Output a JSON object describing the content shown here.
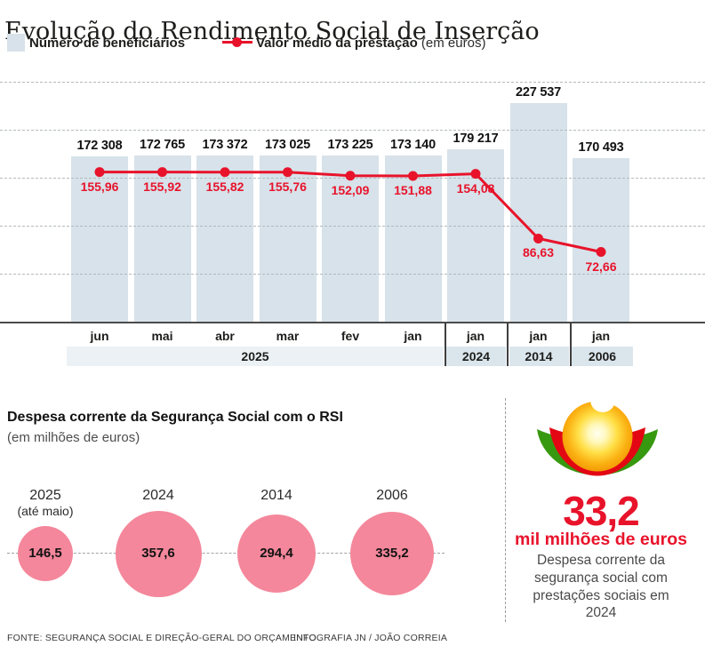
{
  "title": "Evolução do Rendimento Social de Inserção",
  "legend": {
    "beneficiaries_label": "Número de beneficiários",
    "value_label": "Valor médio da prestação",
    "value_unit": "(em euros)"
  },
  "colors": {
    "accent_red": "#e8132b",
    "bar_fill": "#d7e2ea",
    "band_light": "#ebf1f5",
    "band_dark": "#dbe5ec",
    "bubble_pink": "#f4879b",
    "logo_green": "#37990f",
    "logo_red": "#e30613",
    "logo_orange": "#f09200",
    "axis_gray": "#4a4a4a"
  },
  "chart_data": [
    {
      "type": "bar",
      "subtype": "bar+line dual scale",
      "categories": [
        "jun",
        "mai",
        "abr",
        "mar",
        "fev",
        "jan",
        "jan",
        "jan",
        "jan"
      ],
      "year_groups": [
        {
          "label": "2025",
          "span": 6
        },
        {
          "label": "2024",
          "span": 1
        },
        {
          "label": "2014",
          "span": 1
        },
        {
          "label": "2006",
          "span": 1
        }
      ],
      "series": [
        {
          "name": "Número de beneficiários",
          "type": "bar",
          "values": [
            172308,
            172765,
            173372,
            173025,
            173225,
            173140,
            179217,
            227537,
            170493
          ],
          "labels": [
            "172 308",
            "172 765",
            "173 372",
            "173 025",
            "173 225",
            "173 140",
            "179 217",
            "227 537",
            "170 493"
          ]
        },
        {
          "name": "Valor médio da prestação (em euros)",
          "type": "line",
          "values": [
            155.96,
            155.92,
            155.82,
            155.76,
            152.09,
            151.88,
            154.08,
            86.63,
            72.66
          ],
          "labels": [
            "155,96",
            "155,92",
            "155,82",
            "155,76",
            "152,09",
            "151,88",
            "154,08",
            "86,63",
            "72,66"
          ]
        }
      ],
      "bar_axis_range": [
        0,
        250000
      ],
      "line_axis_range": [
        0,
        250
      ],
      "grid": "horizontal dashed lines every 50 000 (bars) / 50 (euros)",
      "legend_position": "top"
    },
    {
      "type": "bubble",
      "title": "Despesa corrente da Segurança Social com o RSI",
      "subtitle": "(em milhões de euros)",
      "categories": [
        "2025",
        "2024",
        "2014",
        "2006"
      ],
      "category_notes": [
        "(até maio)",
        "",
        "",
        ""
      ],
      "values": [
        146.5,
        357.6,
        294.4,
        335.2
      ],
      "labels": [
        "146,5",
        "357,6",
        "294,4",
        "335,2"
      ]
    }
  ],
  "highlight": {
    "big_number": "33,2",
    "big_unit": "mil milhões de euros",
    "description": "Despesa corrente da segurança social com prestações sociais em 2024"
  },
  "footer": {
    "source": "FONTE: SEGURANÇA SOCIAL E DIREÇÃO-GERAL DO ORÇAMENTO",
    "credit": "INFOGRAFIA JN / JOÃO CORREIA"
  }
}
